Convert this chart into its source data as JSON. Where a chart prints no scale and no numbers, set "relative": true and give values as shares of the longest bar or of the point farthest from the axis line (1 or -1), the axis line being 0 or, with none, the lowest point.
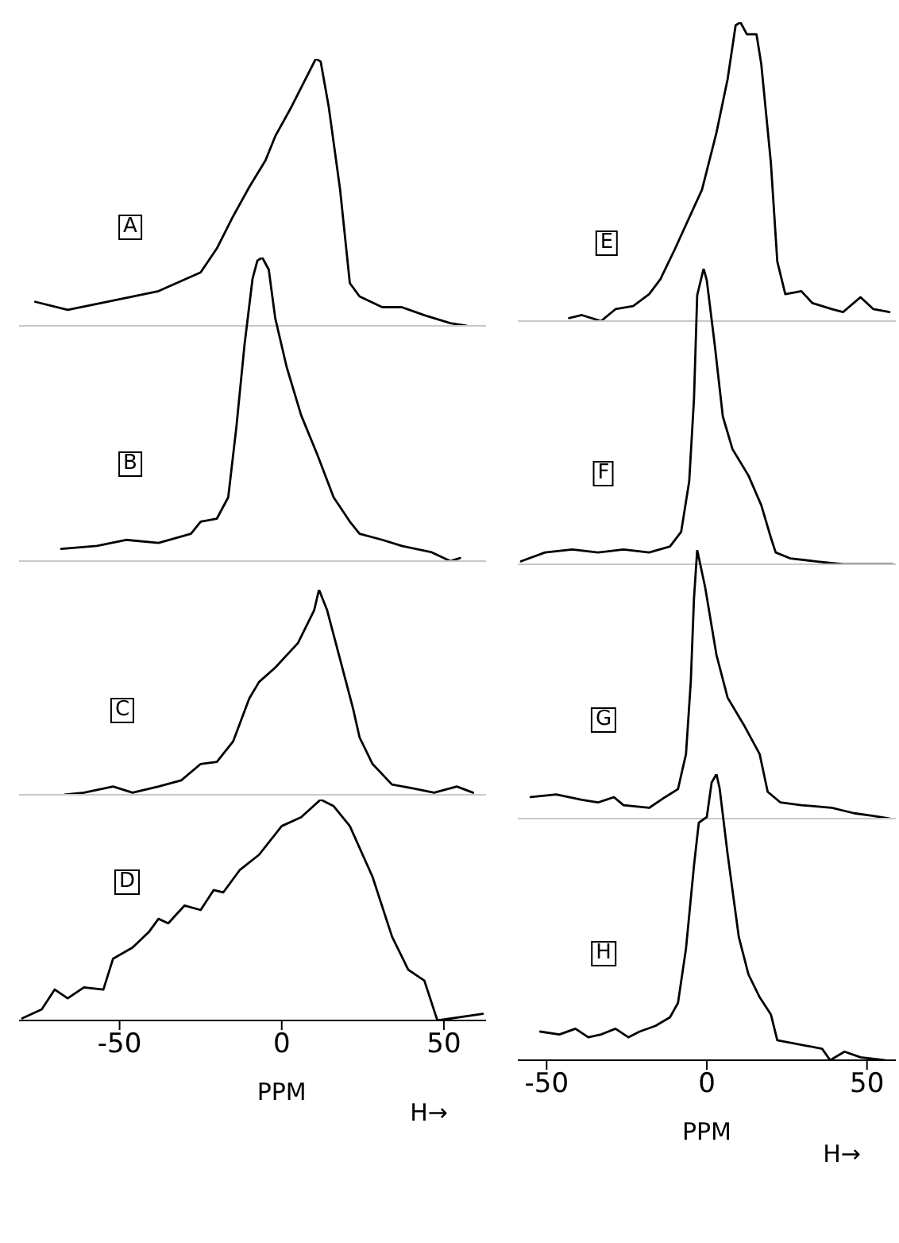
{
  "chart_data": [
    {
      "type": "line",
      "relative": true,
      "color": "#000000",
      "xlim": [
        -81,
        63
      ],
      "xticks": [
        -50,
        0,
        50
      ],
      "tick_labels": false,
      "annotations": [
        "A"
      ],
      "x": [
        -76,
        -66,
        -54,
        -46,
        -38,
        -25,
        -20,
        -15,
        -10,
        -5,
        -2,
        3,
        8,
        10.5,
        12,
        14.5,
        18,
        21,
        24,
        31,
        37,
        44,
        52,
        57
      ],
      "values": [
        0.09,
        0.06,
        0.09,
        0.11,
        0.13,
        0.2,
        0.29,
        0.41,
        0.52,
        0.62,
        0.71,
        0.82,
        0.94,
        1,
        0.99,
        0.82,
        0.51,
        0.16,
        0.11,
        0.07,
        0.07,
        0.04,
        0.01,
        0
      ]
    },
    {
      "type": "line",
      "relative": true,
      "color": "#000000",
      "xlim": [
        -81,
        63
      ],
      "xticks": [
        -50,
        0,
        50
      ],
      "tick_labels": false,
      "annotations": [
        "B"
      ],
      "x": [
        -68,
        -57,
        -48,
        -38,
        -28,
        -25,
        -20,
        -16.5,
        -14,
        -11.5,
        -9,
        -7.5,
        -6,
        -4,
        -2,
        1.5,
        6,
        11,
        16,
        21,
        24,
        31,
        37,
        46,
        52,
        55
      ],
      "values": [
        0.04,
        0.05,
        0.07,
        0.06,
        0.09,
        0.13,
        0.14,
        0.21,
        0.44,
        0.71,
        0.93,
        0.99,
        1,
        0.96,
        0.8,
        0.64,
        0.48,
        0.35,
        0.21,
        0.13,
        0.09,
        0.07,
        0.05,
        0.03,
        0,
        0.01
      ]
    },
    {
      "type": "line",
      "relative": true,
      "color": "#000000",
      "xlim": [
        -81,
        63
      ],
      "xticks": [
        -50,
        0,
        50
      ],
      "tick_labels": false,
      "annotations": [
        "C"
      ],
      "x": [
        -67,
        -61,
        -52,
        -46,
        -38,
        -31,
        -25,
        -20,
        -15,
        -10,
        -7,
        -2,
        5,
        10,
        11.5,
        14,
        18,
        22,
        24,
        28,
        34,
        41,
        47,
        54,
        59
      ],
      "values": [
        0,
        0.01,
        0.04,
        0.01,
        0.04,
        0.07,
        0.15,
        0.16,
        0.26,
        0.47,
        0.55,
        0.62,
        0.74,
        0.9,
        1,
        0.9,
        0.66,
        0.42,
        0.28,
        0.15,
        0.05,
        0.03,
        0.01,
        0.04,
        0.01
      ]
    },
    {
      "type": "line",
      "relative": true,
      "color": "#000000",
      "xlim": [
        -81,
        63
      ],
      "xticks": [
        -50,
        0,
        50
      ],
      "tick_labels": "x",
      "xlabel": "PPM",
      "annotations": [
        "D",
        "H→"
      ],
      "x": [
        -80,
        -74,
        -70,
        -66,
        -61,
        -55,
        -52,
        -46,
        -41,
        -38,
        -35,
        -30,
        -25,
        -21,
        -18,
        -13,
        -7,
        0,
        6,
        12,
        16,
        21,
        28,
        34,
        39,
        44,
        48,
        62
      ],
      "values": [
        0.01,
        0.05,
        0.14,
        0.1,
        0.15,
        0.14,
        0.28,
        0.33,
        0.4,
        0.46,
        0.44,
        0.52,
        0.5,
        0.59,
        0.58,
        0.68,
        0.75,
        0.88,
        0.92,
        1,
        0.97,
        0.88,
        0.65,
        0.38,
        0.23,
        0.18,
        0,
        0.03
      ]
    },
    {
      "type": "line",
      "relative": true,
      "color": "#000000",
      "xlim": [
        -59,
        59
      ],
      "xticks": [
        -50,
        0,
        50
      ],
      "tick_labels": false,
      "annotations": [
        "E"
      ],
      "x": [
        -43,
        -39,
        -33,
        -28.5,
        -23,
        -18,
        -14.5,
        -10,
        -1.5,
        3,
        6.5,
        9,
        10.5,
        12.5,
        15.5,
        17,
        20,
        22,
        24.5,
        29.5,
        33,
        39,
        42.5,
        48,
        52,
        57
      ],
      "values": [
        0.01,
        0.02,
        0,
        0.04,
        0.05,
        0.09,
        0.14,
        0.24,
        0.44,
        0.63,
        0.81,
        0.99,
        1,
        0.96,
        0.96,
        0.86,
        0.53,
        0.2,
        0.09,
        0.1,
        0.06,
        0.04,
        0.03,
        0.08,
        0.04,
        0.03
      ]
    },
    {
      "type": "line",
      "relative": true,
      "color": "#000000",
      "xlim": [
        -59,
        59
      ],
      "xticks": [
        -50,
        0,
        50
      ],
      "tick_labels": false,
      "annotations": [
        "F"
      ],
      "x": [
        -58,
        -50.5,
        -42,
        -34,
        -26,
        -18,
        -11.5,
        -8,
        -5.5,
        -4,
        -3,
        -1,
        0,
        2.5,
        5,
        8,
        13,
        17,
        20,
        21.5,
        26,
        34,
        42.5,
        52,
        58
      ],
      "values": [
        0.01,
        0.04,
        0.05,
        0.04,
        0.05,
        0.04,
        0.06,
        0.11,
        0.28,
        0.56,
        0.91,
        1,
        0.96,
        0.74,
        0.5,
        0.39,
        0.3,
        0.2,
        0.09,
        0.04,
        0.02,
        0.01,
        0,
        0,
        0
      ]
    },
    {
      "type": "line",
      "relative": true,
      "color": "#000000",
      "xlim": [
        -59,
        59
      ],
      "xticks": [
        -50,
        0,
        50
      ],
      "tick_labels": false,
      "annotations": [
        "G"
      ],
      "x": [
        -55,
        -47,
        -39,
        -34,
        -29,
        -26,
        -18,
        -13,
        -9,
        -6.5,
        -5,
        -4,
        -3,
        -0.5,
        3,
        6.5,
        11.5,
        16.5,
        19,
        23,
        29.5,
        39,
        46,
        52,
        57
      ],
      "values": [
        0.08,
        0.09,
        0.07,
        0.06,
        0.08,
        0.05,
        0.04,
        0.08,
        0.11,
        0.24,
        0.51,
        0.82,
        1,
        0.86,
        0.61,
        0.45,
        0.35,
        0.24,
        0.1,
        0.06,
        0.05,
        0.04,
        0.02,
        0.01,
        0
      ]
    },
    {
      "type": "line",
      "relative": true,
      "color": "#000000",
      "xlim": [
        -59,
        59
      ],
      "xticks": [
        -50,
        0,
        50
      ],
      "tick_labels": "x",
      "xlabel": "PPM",
      "annotations": [
        "H",
        "H→"
      ],
      "x": [
        -52,
        -46,
        -41,
        -37,
        -33,
        -28.5,
        -24.5,
        -21,
        -16,
        -11.5,
        -9,
        -6.5,
        -4,
        -2.5,
        0,
        1.5,
        3,
        4,
        6.5,
        10,
        13,
        16.5,
        20,
        22,
        36,
        38.5,
        43,
        48,
        55.5
      ],
      "values": [
        0.1,
        0.09,
        0.11,
        0.08,
        0.09,
        0.11,
        0.08,
        0.1,
        0.12,
        0.15,
        0.2,
        0.39,
        0.68,
        0.83,
        0.85,
        0.97,
        1,
        0.95,
        0.72,
        0.43,
        0.3,
        0.22,
        0.16,
        0.07,
        0.04,
        0,
        0.03,
        0.01,
        0
      ]
    }
  ]
}
